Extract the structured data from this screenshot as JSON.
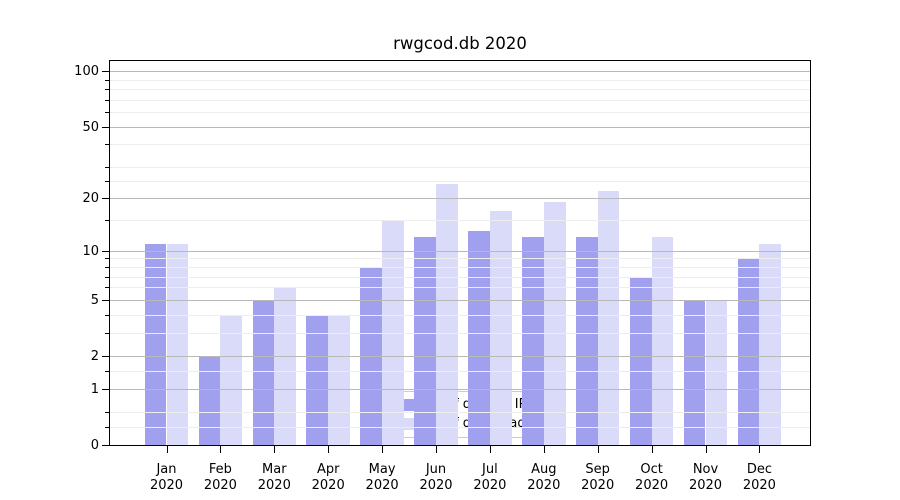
{
  "title": "rwgcod.db 2020",
  "chart_data": {
    "type": "bar",
    "title": "rwgcod.db 2020",
    "categories": [
      "Jan 2020",
      "Feb 2020",
      "Mar 2020",
      "Apr 2020",
      "May 2020",
      "Jun 2020",
      "Jul 2020",
      "Aug 2020",
      "Sep 2020",
      "Oct 2020",
      "Nov 2020",
      "Dec 2020"
    ],
    "series": [
      {
        "name": "Nb of distinct IPs",
        "color": "#a0a0ee",
        "values": [
          11,
          2,
          5,
          4,
          8,
          12,
          13,
          12,
          12,
          7,
          5,
          9
        ]
      },
      {
        "name": "Nb of downloads",
        "color": "#dadaf9",
        "values": [
          11,
          4,
          6,
          4,
          15,
          24,
          17,
          19,
          22,
          12,
          5,
          11
        ]
      }
    ],
    "xlabel": "",
    "ylabel": "",
    "yscale": "log1p",
    "ylim": [
      0,
      113
    ],
    "yticks": [
      0,
      1,
      2,
      5,
      10,
      20,
      50,
      100
    ],
    "yminorticks": [
      0.25,
      0.5,
      1.5,
      3,
      4,
      6,
      7,
      8,
      9,
      15,
      25,
      30,
      40,
      60,
      70,
      80,
      90
    ],
    "grid": "horizontal major+minor, drawn above bars",
    "legend_position": "lower center"
  },
  "colors": {
    "bar_dark": "#a0a0ee",
    "bar_light": "#dadaf9",
    "grid_major": "#b9b9b9",
    "grid_minor": "#ededed",
    "spine": "#000000",
    "legend_border": "#cccccc",
    "background": "#ffffff"
  }
}
